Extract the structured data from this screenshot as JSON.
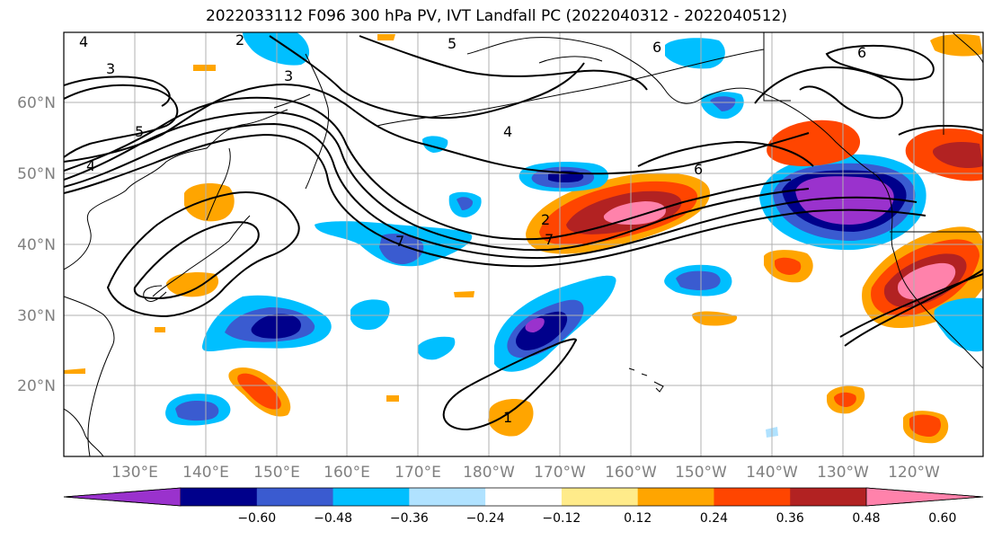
{
  "title": "2022033112 F096 300 hPa PV, IVT Landfall PC (2022040312 - 2022040512)",
  "lon_labels": [
    "130°E",
    "140°E",
    "150°E",
    "160°E",
    "170°E",
    "180°W",
    "170°W",
    "160°W",
    "150°W",
    "140°W",
    "130°W",
    "120°W"
  ],
  "lat_labels": [
    "60°N",
    "50°N",
    "40°N",
    "30°N",
    "20°N"
  ],
  "colorbar": {
    "ticks": [
      "−0.60",
      "−0.48",
      "−0.36",
      "−0.24",
      "−0.12",
      "0.12",
      "0.24",
      "0.36",
      "0.48",
      "0.60"
    ],
    "colors": [
      "#9a32cd",
      "#00008b",
      "#3a5bd0",
      "#00bfff",
      "#b0e2ff",
      "#ffffff",
      "#ffeb8a",
      "#ffa500",
      "#ff4500",
      "#b22222",
      "#ff82ab"
    ]
  },
  "contour_labels": [
    "4",
    "3",
    "2",
    "5",
    "6",
    "3",
    "6",
    "4",
    "5",
    "4",
    "7",
    "6",
    "2",
    "7",
    "1"
  ],
  "colors": {
    "land_outline": "#000000",
    "grid": "#b0b0b0",
    "contour": "#000000"
  }
}
